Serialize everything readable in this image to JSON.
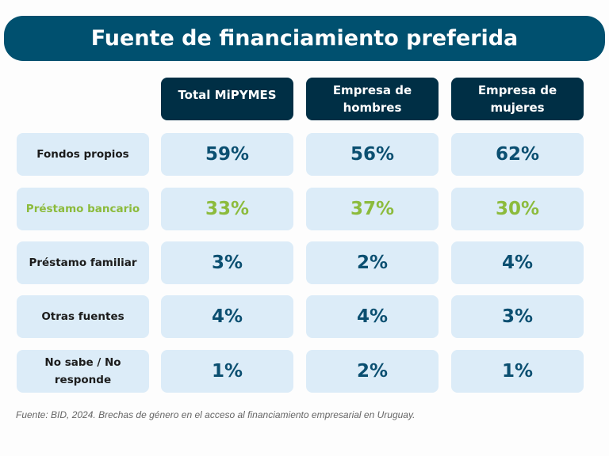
{
  "title": "Fuente de financiamiento preferida",
  "columns": [
    "Total MiPYMES",
    "Empresa de hombres",
    "Empresa de mujeres"
  ],
  "rows": [
    {
      "label": "Fondos propios",
      "values": [
        "59%",
        "56%",
        "62%"
      ],
      "highlight": false
    },
    {
      "label": "Préstamo bancario",
      "values": [
        "33%",
        "37%",
        "30%"
      ],
      "highlight": true
    },
    {
      "label": "Préstamo familiar",
      "values": [
        "3%",
        "2%",
        "4%"
      ],
      "highlight": false
    },
    {
      "label": "Otras fuentes",
      "values": [
        "4%",
        "4%",
        "3%"
      ],
      "highlight": false
    },
    {
      "label": "No sabe / No responde",
      "values": [
        "1%",
        "2%",
        "1%"
      ],
      "highlight": false
    }
  ],
  "source": "Fuente: BID, 2024. Brechas de género en el acceso al financiamiento empresarial en Uruguay.",
  "colors": {
    "title_bg": "#00506f",
    "header_bg": "#002f45",
    "cell_bg": "#dcecf8",
    "value": "#0b4f71",
    "highlight": "#8cbb3c"
  }
}
